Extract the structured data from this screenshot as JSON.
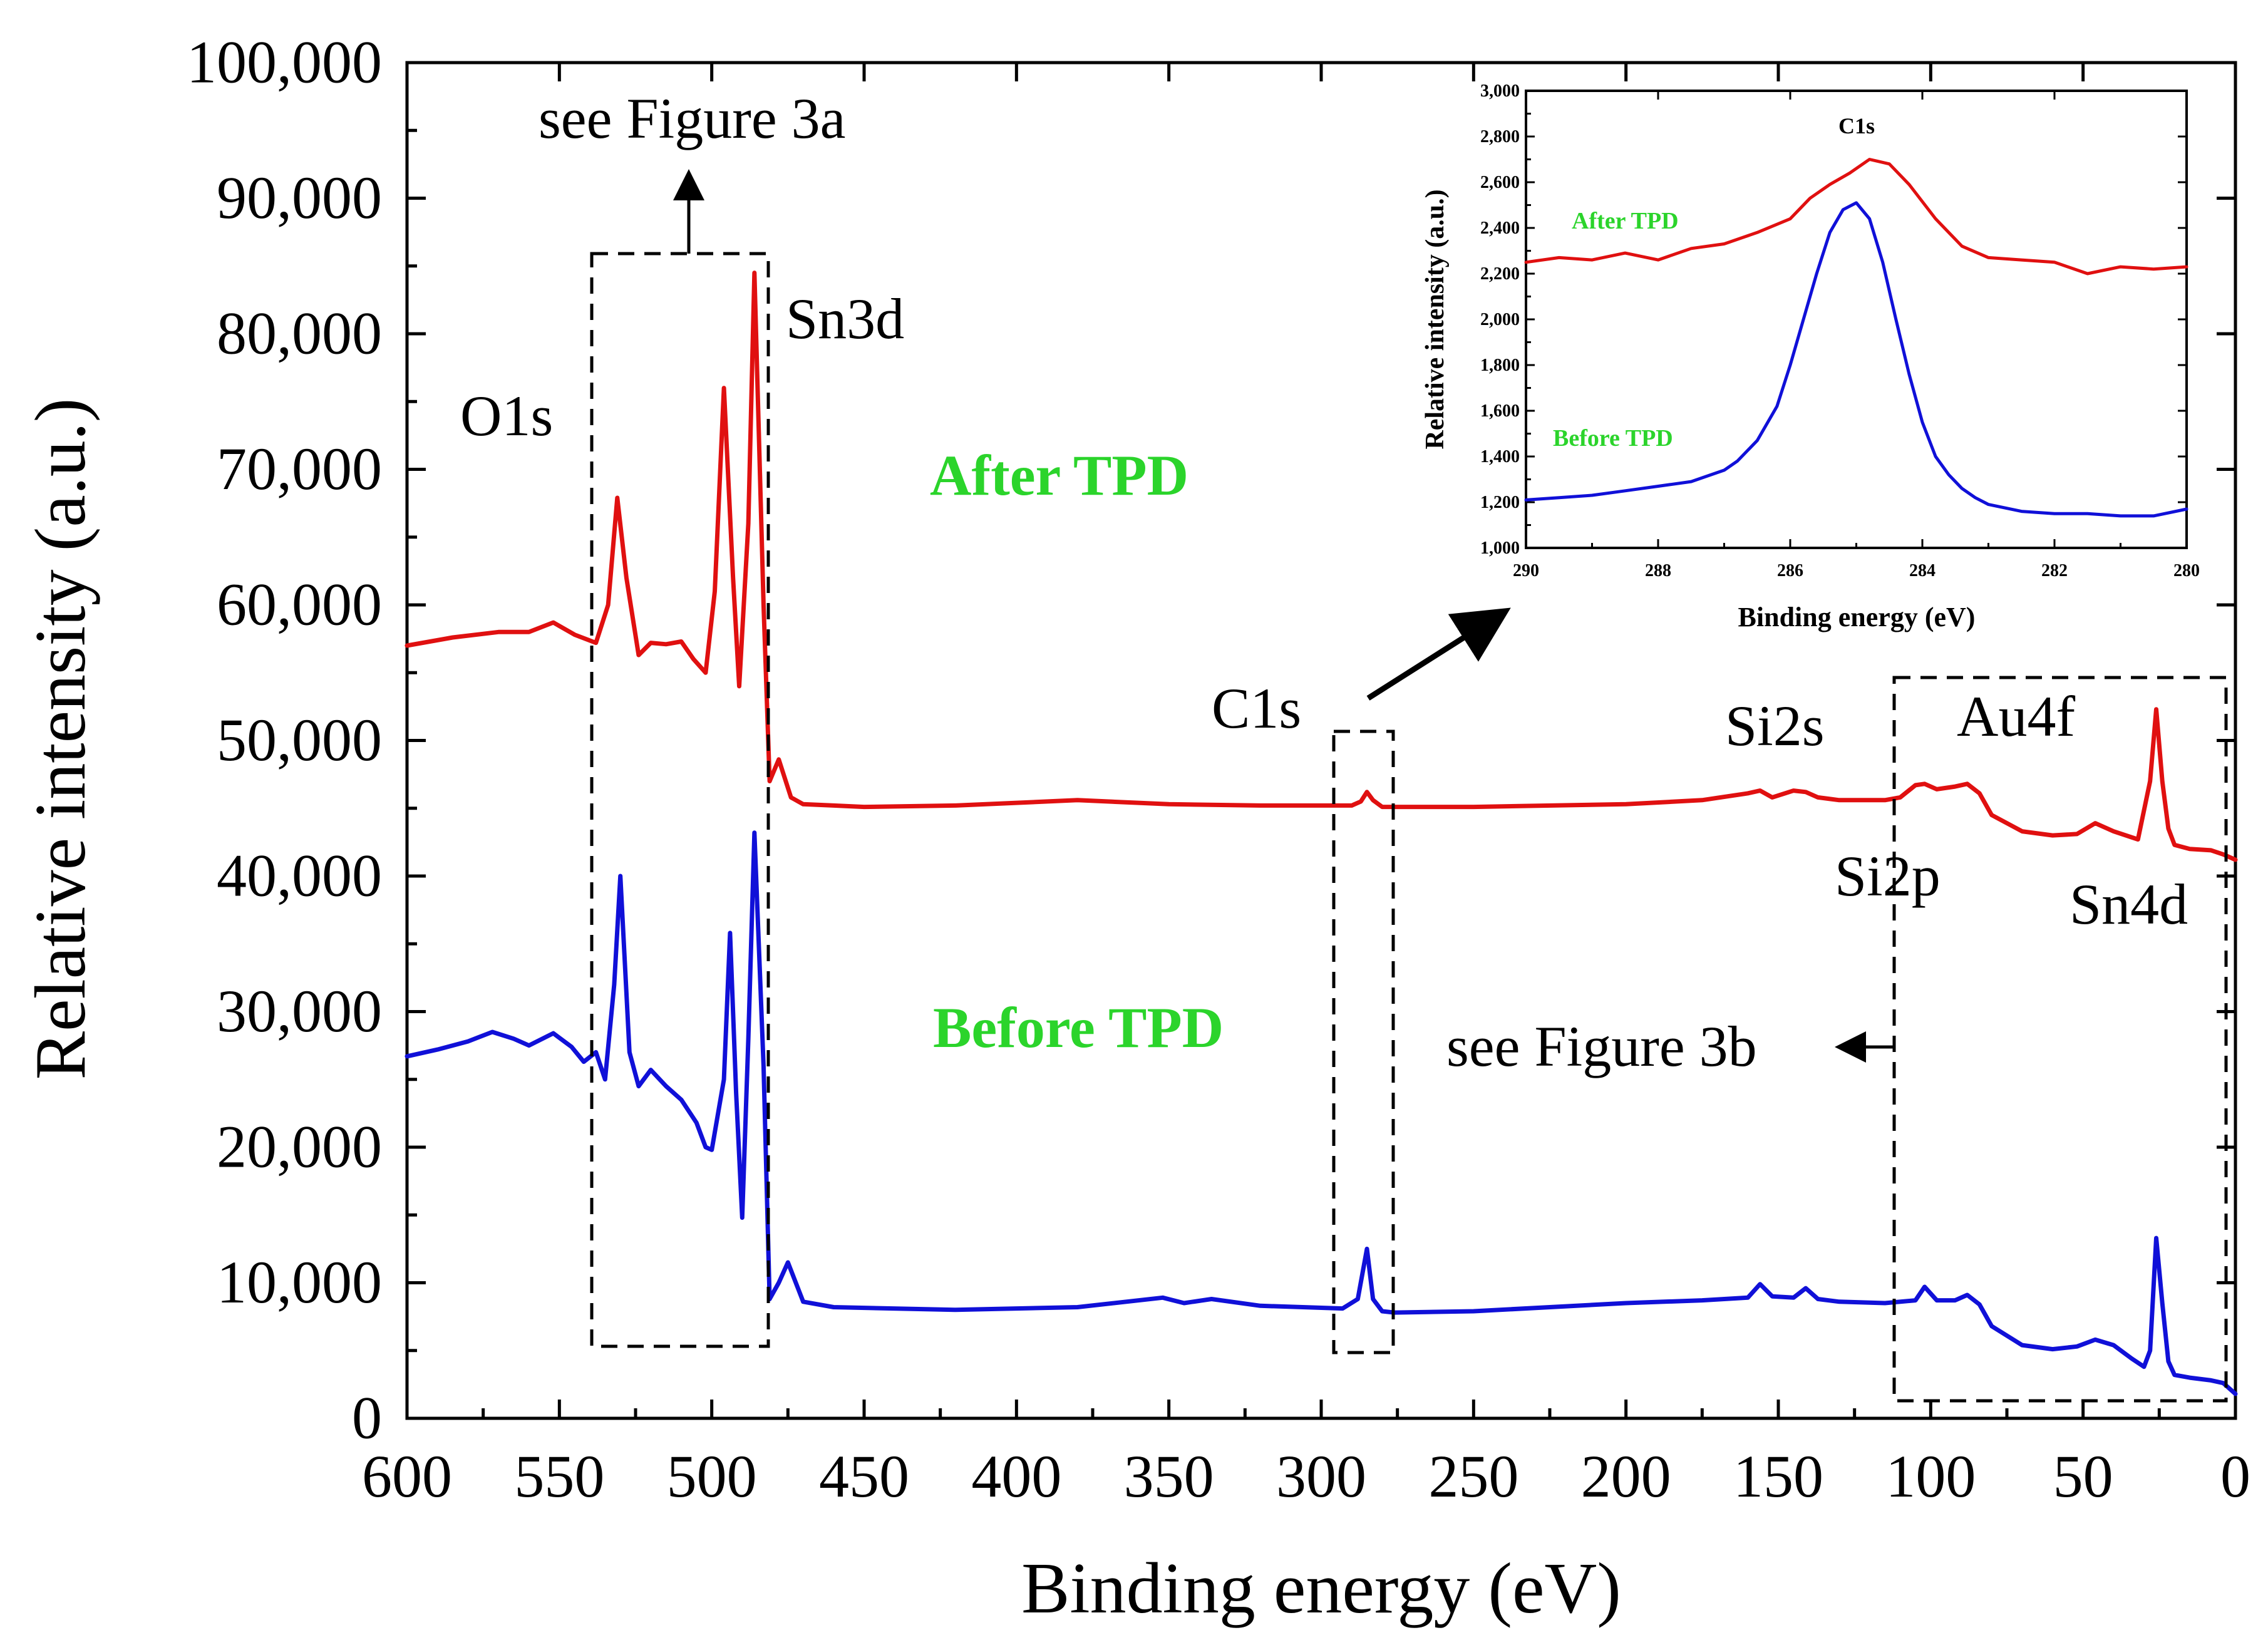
{
  "chart_data": [
    {
      "id": "main",
      "type": "line",
      "xlabel": "Binding energy (eV)",
      "ylabel": "Relative intensity (a.u.)",
      "xlim": [
        600,
        0
      ],
      "ylim": [
        0,
        100000
      ],
      "x_ticks": [
        600,
        550,
        500,
        450,
        400,
        350,
        300,
        250,
        200,
        150,
        100,
        50,
        0
      ],
      "x_tick_labels": [
        "600",
        "550",
        "500",
        "450",
        "400",
        "350",
        "300",
        "250",
        "200",
        "150",
        "100",
        "50",
        "0"
      ],
      "y_ticks": [
        0,
        10000,
        20000,
        30000,
        40000,
        50000,
        60000,
        70000,
        80000,
        90000,
        100000
      ],
      "y_tick_labels": [
        "0",
        "10,000",
        "20,000",
        "30,000",
        "40,000",
        "50,000",
        "60,000",
        "70,000",
        "80,000",
        "90,000",
        "100,000"
      ],
      "series": [
        {
          "name": "After TPD",
          "color": "#e01010",
          "x": [
            600,
            585,
            570,
            560,
            552,
            545,
            538,
            534,
            531,
            528,
            524,
            520,
            515,
            510,
            506,
            502,
            499,
            496,
            493,
            491,
            488,
            486,
            483,
            481,
            478,
            474,
            470,
            460,
            450,
            420,
            380,
            350,
            320,
            290,
            287,
            285,
            283,
            280,
            250,
            200,
            175,
            160,
            156,
            152,
            145,
            141,
            137,
            130,
            115,
            110,
            105,
            102,
            98,
            92,
            88,
            84,
            80,
            70,
            60,
            52,
            46,
            40,
            32,
            28,
            26,
            24,
            22,
            20,
            15,
            8,
            4,
            0
          ],
          "y": [
            57000,
            57600,
            58000,
            58000,
            58700,
            57800,
            57200,
            60000,
            67900,
            62000,
            56300,
            57200,
            57100,
            57300,
            56000,
            55000,
            61000,
            76000,
            62000,
            54000,
            66000,
            84500,
            60000,
            47000,
            48600,
            45800,
            45300,
            45200,
            45100,
            45200,
            45600,
            45300,
            45200,
            45200,
            45500,
            46200,
            45600,
            45100,
            45100,
            45300,
            45600,
            46100,
            46300,
            45800,
            46300,
            46200,
            45800,
            45600,
            45600,
            45800,
            46700,
            46800,
            46400,
            46600,
            46800,
            46100,
            44500,
            43300,
            43000,
            43100,
            43900,
            43300,
            42700,
            47000,
            52300,
            47000,
            43500,
            42300,
            42000,
            41900,
            41600,
            41200
          ]
        },
        {
          "name": "Before TPD",
          "color": "#1010d8",
          "x": [
            600,
            590,
            580,
            572,
            565,
            560,
            552,
            546,
            542,
            538,
            535,
            532,
            530,
            527,
            524,
            520,
            515,
            510,
            505,
            502,
            500,
            496,
            494,
            492,
            490,
            488,
            486,
            483,
            481,
            478,
            475,
            470,
            460,
            420,
            380,
            352,
            345,
            336,
            320,
            293,
            288,
            285,
            283,
            280,
            276,
            250,
            200,
            175,
            160,
            156,
            152,
            145,
            141,
            137,
            130,
            115,
            105,
            102,
            98,
            92,
            88,
            84,
            80,
            70,
            60,
            52,
            46,
            40,
            34,
            30,
            28,
            26,
            24,
            22,
            20,
            15,
            8,
            4,
            0
          ],
          "y": [
            26700,
            27200,
            27800,
            28500,
            28000,
            27500,
            28400,
            27400,
            26300,
            27000,
            25000,
            32000,
            40000,
            27000,
            24500,
            25700,
            24500,
            23500,
            21800,
            20000,
            19800,
            25000,
            35800,
            24000,
            14800,
            28000,
            43200,
            26000,
            8800,
            10000,
            11500,
            8600,
            8200,
            8000,
            8200,
            8900,
            8500,
            8800,
            8300,
            8100,
            8800,
            12500,
            8800,
            7900,
            7800,
            7900,
            8500,
            8700,
            8900,
            9900,
            9000,
            8900,
            9600,
            8800,
            8600,
            8500,
            8700,
            9700,
            8700,
            8700,
            9100,
            8400,
            6800,
            5400,
            5100,
            5300,
            5800,
            5400,
            4400,
            3800,
            5000,
            13300,
            8500,
            4200,
            3200,
            3000,
            2800,
            2600,
            1800
          ]
        }
      ],
      "annotations": {
        "o1s": "O1s",
        "sn3d": "Sn3d",
        "c1s": "C1s",
        "si2s": "Si2s",
        "au4f": "Au4f",
        "si2p": "Si2p",
        "sn4d": "Sn4d",
        "see_fig_3a": "see Figure 3a",
        "see_fig_3b": "see Figure 3b",
        "after_tpd": "After TPD",
        "before_tpd": "Before TPD"
      },
      "label_color": "#2bd42b"
    },
    {
      "id": "inset",
      "type": "line",
      "title": "C1s",
      "xlabel": "Binding energy (eV)",
      "ylabel": "Relative intensity (a.u.)",
      "xlim": [
        290,
        280
      ],
      "ylim": [
        1000,
        3000
      ],
      "x_ticks": [
        290,
        288,
        286,
        284,
        282,
        280
      ],
      "x_tick_labels": [
        "290",
        "288",
        "286",
        "284",
        "282",
        "280"
      ],
      "y_ticks": [
        1000,
        1200,
        1400,
        1600,
        1800,
        2000,
        2200,
        2400,
        2600,
        2800,
        3000
      ],
      "y_tick_labels": [
        "1,000",
        "1,200",
        "1,400",
        "1,600",
        "1,800",
        "2,000",
        "2,200",
        "2,400",
        "2,600",
        "2,800",
        "3,000"
      ],
      "series": [
        {
          "name": "After TPD",
          "color": "#e01010",
          "x": [
            290,
            289.5,
            289,
            288.5,
            288,
            287.5,
            287,
            286.5,
            286,
            285.7,
            285.4,
            285.1,
            284.8,
            284.5,
            284.2,
            283.8,
            283.4,
            283,
            282.5,
            282,
            281.5,
            281,
            280.5,
            280
          ],
          "y": [
            2250,
            2270,
            2260,
            2290,
            2260,
            2310,
            2330,
            2380,
            2440,
            2530,
            2590,
            2640,
            2700,
            2680,
            2590,
            2440,
            2320,
            2270,
            2260,
            2250,
            2200,
            2230,
            2220,
            2230
          ]
        },
        {
          "name": "Before TPD",
          "color": "#1010d8",
          "x": [
            290,
            289.5,
            289,
            288.5,
            288,
            287.5,
            287,
            286.8,
            286.5,
            286.2,
            286,
            285.8,
            285.6,
            285.4,
            285.2,
            285,
            284.8,
            284.6,
            284.4,
            284.2,
            284,
            283.8,
            283.6,
            283.4,
            283.2,
            283,
            282.5,
            282,
            281.5,
            281,
            280.5,
            280
          ],
          "y": [
            1210,
            1220,
            1230,
            1250,
            1270,
            1290,
            1340,
            1380,
            1470,
            1620,
            1800,
            2000,
            2200,
            2380,
            2480,
            2510,
            2440,
            2250,
            2000,
            1760,
            1550,
            1400,
            1320,
            1260,
            1220,
            1190,
            1160,
            1150,
            1150,
            1140,
            1140,
            1170
          ]
        }
      ],
      "annotations": {
        "after_tpd": "After TPD",
        "before_tpd": "Before TPD"
      }
    }
  ]
}
